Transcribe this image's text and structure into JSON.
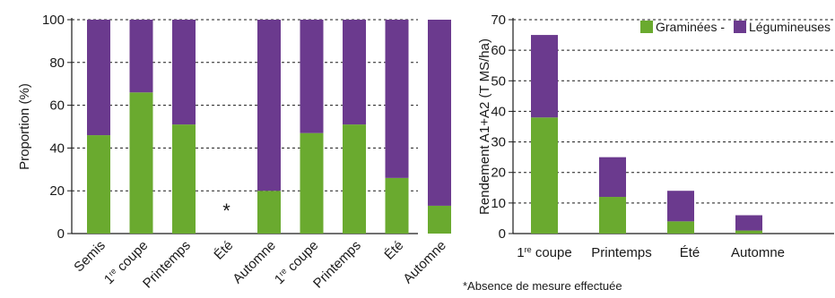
{
  "colors": {
    "green": "#6aaa2f",
    "purple": "#6b3a8e",
    "axis": "#1a1a1a",
    "grid": "#1a1a1a"
  },
  "chart_data": [
    {
      "type": "bar",
      "stacked": true,
      "ylabel": "Proportion (%)",
      "ylim": [
        0,
        100
      ],
      "yticks": [
        0,
        20,
        40,
        60,
        80,
        100
      ],
      "grid": "dashed-horizontal",
      "categories": [
        "Semis",
        "1re coupe",
        "Printemps",
        "Été",
        "Automne",
        "1re coupe",
        "Printemps",
        "Été",
        "Automne"
      ],
      "series": [
        {
          "name": "Graminées",
          "color": "#6aaa2f",
          "values": [
            46,
            66,
            51,
            null,
            20,
            47,
            51,
            26,
            13
          ]
        },
        {
          "name": "Légumineuses",
          "color": "#6b3a8e",
          "values": [
            54,
            34,
            49,
            null,
            80,
            53,
            49,
            74,
            87
          ]
        }
      ],
      "annotations": [
        {
          "category": "Été",
          "text": "*"
        }
      ]
    },
    {
      "type": "bar",
      "stacked": true,
      "ylabel": "Rendement A1+A2 (T MS/ha)",
      "ylim": [
        0,
        70
      ],
      "yticks": [
        0,
        10,
        20,
        30,
        40,
        50,
        60,
        70
      ],
      "grid": "dashed-horizontal",
      "legend_position": "top-right",
      "legend_separator": "-",
      "categories": [
        "1re coupe",
        "Printemps",
        "Été",
        "Automne"
      ],
      "series": [
        {
          "name": "Graminées",
          "color": "#6aaa2f",
          "values": [
            38,
            12,
            4,
            1
          ]
        },
        {
          "name": "Légumineuses",
          "color": "#6b3a8e",
          "values": [
            27,
            13,
            10,
            5
          ]
        }
      ]
    }
  ],
  "footnote": "*Absence de mesure effectuée"
}
